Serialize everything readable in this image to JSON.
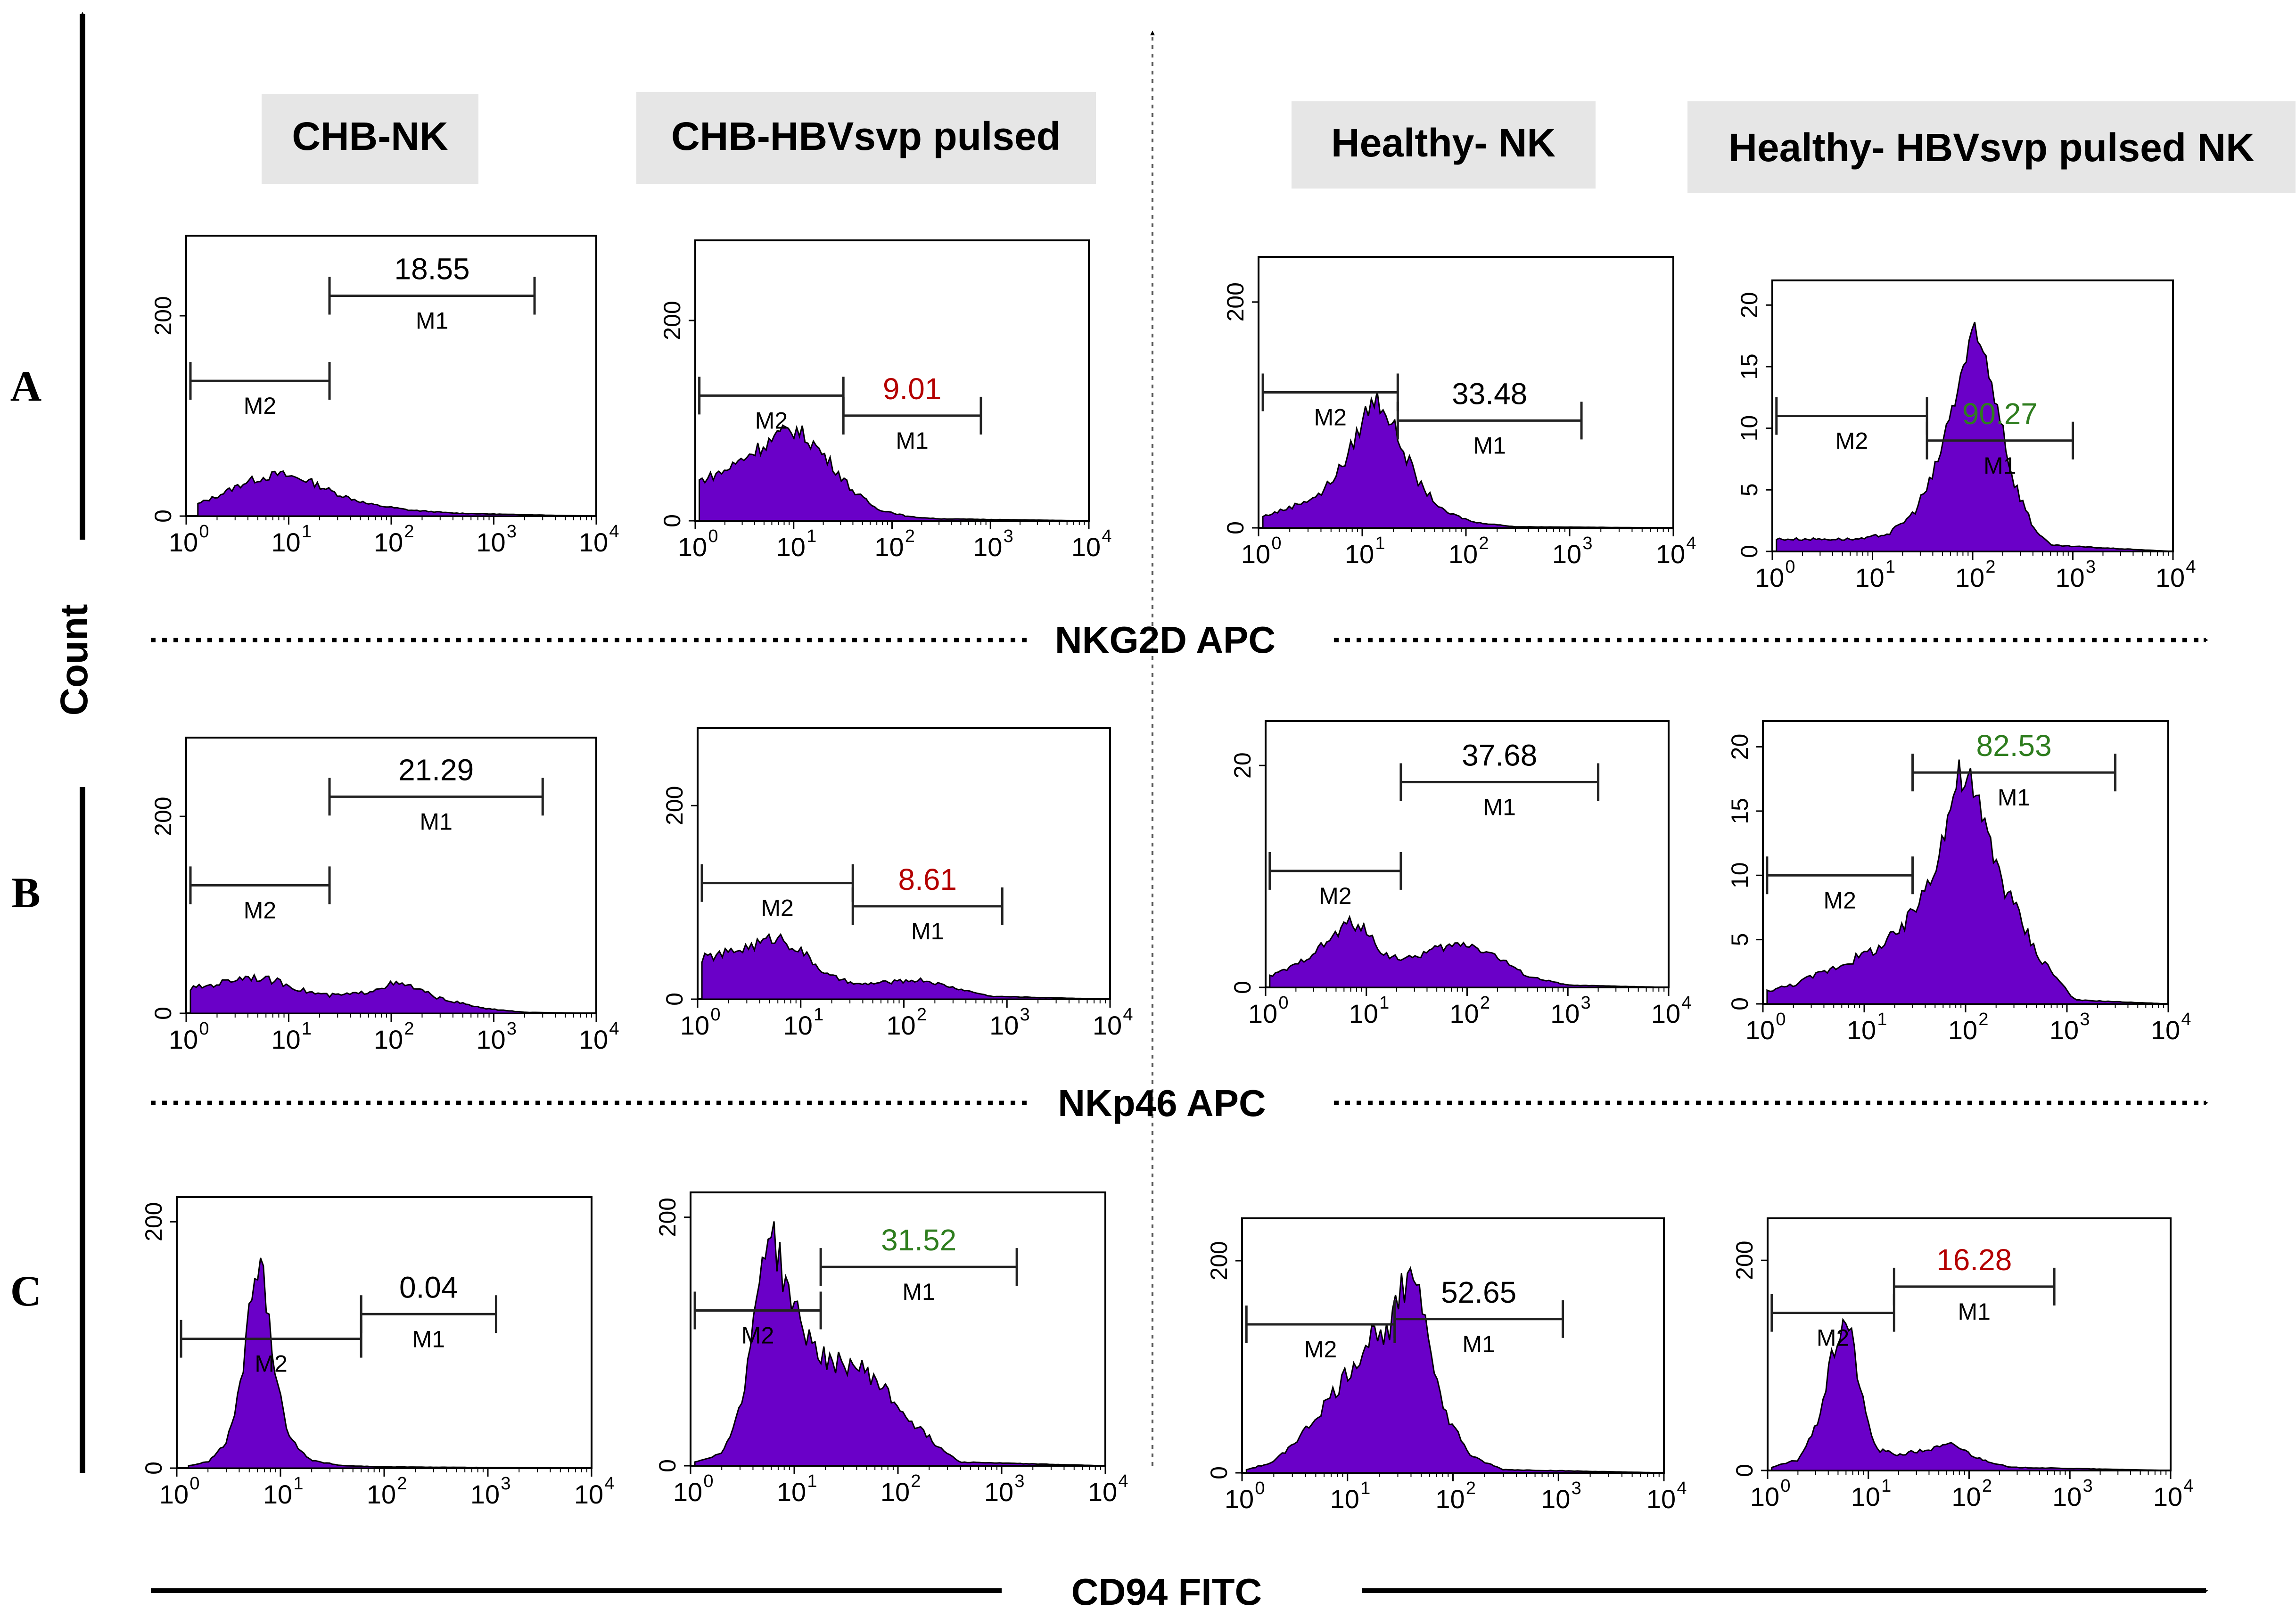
{
  "colors": {
    "fill": "#6a00c8",
    "header_bg": "#e6e6e6",
    "ink": "#000000",
    "red": "#b40000",
    "green": "#2e7d1e",
    "black": "#000000"
  },
  "columns": [
    "CHB-NK",
    "CHB-HBVsvp pulsed",
    "Healthy- NK",
    "Healthy- HBVsvp pulsed NK"
  ],
  "rows": [
    {
      "letter": "A",
      "marker": "NKG2D APC"
    },
    {
      "letter": "B",
      "marker": "NKp46 APC"
    },
    {
      "letter": "C",
      "marker": "CD94 FITC"
    }
  ],
  "y_axis_label": "Count",
  "chart_data": [
    {
      "type": "area",
      "row": "A",
      "column": "CHB-NK",
      "xscale": "log",
      "xlim": [
        1,
        10000
      ],
      "ylim": [
        0,
        280
      ],
      "yticks": [
        {
          "value": 0,
          "label": "0"
        },
        {
          "value": 200,
          "label": "200"
        }
      ],
      "x": [
        1.3,
        2,
        4,
        8,
        15,
        30,
        60,
        150,
        400,
        1000,
        3000,
        10000
      ],
      "counts": [
        12,
        20,
        35,
        42,
        36,
        22,
        12,
        6,
        3,
        2,
        1,
        0
      ],
      "gates": [
        {
          "name": "M2",
          "from": 1.1,
          "to": 25,
          "level": 135
        },
        {
          "name": "M1",
          "from": 25,
          "to": 2500,
          "level": 220,
          "percent": "18.55",
          "percent_color": "black"
        }
      ]
    },
    {
      "type": "area",
      "row": "A",
      "column": "CHB-HBVsvp pulsed",
      "xscale": "log",
      "xlim": [
        1,
        10000
      ],
      "ylim": [
        0,
        280
      ],
      "yticks": [
        {
          "value": 0,
          "label": "0"
        },
        {
          "value": 200,
          "label": "200"
        }
      ],
      "x": [
        1.1,
        2,
        4,
        7,
        10,
        15,
        25,
        40,
        70,
        150,
        300,
        10000
      ],
      "counts": [
        40,
        50,
        70,
        85,
        92,
        80,
        55,
        30,
        12,
        4,
        2,
        0
      ],
      "gates": [
        {
          "name": "M2",
          "from": 1.1,
          "to": 32,
          "level": 125
        },
        {
          "name": "M1",
          "from": 32,
          "to": 800,
          "level": 105,
          "percent": "9.01",
          "percent_color": "red"
        }
      ]
    },
    {
      "type": "area",
      "row": "A",
      "column": "Healthy- NK",
      "xscale": "log",
      "xlim": [
        1,
        10000
      ],
      "ylim": [
        0,
        240
      ],
      "yticks": [
        {
          "value": 0,
          "label": "0"
        },
        {
          "value": 200,
          "label": "200"
        }
      ],
      "x": [
        1.1,
        2,
        4,
        7,
        10,
        13,
        16,
        22,
        35,
        60,
        120,
        300,
        10000
      ],
      "counts": [
        10,
        18,
        30,
        60,
        95,
        115,
        110,
        80,
        40,
        15,
        5,
        1,
        0
      ],
      "gates": [
        {
          "name": "M2",
          "from": 1.1,
          "to": 22,
          "level": 120
        },
        {
          "name": "M1",
          "from": 22,
          "to": 1300,
          "level": 95,
          "percent": "33.48",
          "percent_color": "black"
        }
      ]
    },
    {
      "type": "area",
      "row": "A",
      "column": "Healthy- HBVsvp pulsed NK",
      "xscale": "log",
      "xlim": [
        1,
        10000
      ],
      "ylim": [
        0,
        22
      ],
      "yticks": [
        {
          "value": 0,
          "label": "0"
        },
        {
          "value": 5,
          "label": "5"
        },
        {
          "value": 10,
          "label": "10"
        },
        {
          "value": 15,
          "label": "15"
        },
        {
          "value": 20,
          "label": "20"
        }
      ],
      "x": [
        1.1,
        2,
        4,
        8,
        15,
        25,
        40,
        60,
        80,
        100,
        130,
        180,
        250,
        400,
        600,
        10000
      ],
      "counts": [
        1,
        1,
        1,
        1,
        1.5,
        3,
        6,
        11,
        15,
        17,
        16,
        12,
        6,
        2,
        0.5,
        0
      ],
      "gates": [
        {
          "name": "M2",
          "from": 1.1,
          "to": 35,
          "level": 11
        },
        {
          "name": "M1",
          "from": 35,
          "to": 1000,
          "level": 9,
          "percent": "90.27",
          "percent_color": "green"
        }
      ]
    },
    {
      "type": "area",
      "row": "B",
      "column": "CHB-NK",
      "xscale": "log",
      "xlim": [
        1,
        10000
      ],
      "ylim": [
        0,
        280
      ],
      "yticks": [
        {
          "value": 0,
          "label": "0"
        },
        {
          "value": 200,
          "label": "200"
        }
      ],
      "x": [
        1.1,
        2,
        4,
        8,
        15,
        25,
        50,
        100,
        150,
        300,
        800,
        2000,
        10000
      ],
      "counts": [
        25,
        30,
        38,
        32,
        22,
        18,
        20,
        30,
        28,
        15,
        5,
        1,
        0
      ],
      "gates": [
        {
          "name": "M2",
          "from": 1.1,
          "to": 25,
          "level": 130
        },
        {
          "name": "M1",
          "from": 25,
          "to": 3000,
          "level": 220,
          "percent": "21.29",
          "percent_color": "black"
        }
      ]
    },
    {
      "type": "area",
      "row": "B",
      "column": "CHB-HBVsvp pulsed",
      "xscale": "log",
      "xlim": [
        1,
        10000
      ],
      "ylim": [
        0,
        280
      ],
      "yticks": [
        {
          "value": 0,
          "label": "0"
        },
        {
          "value": 200,
          "label": "200"
        }
      ],
      "x": [
        1.1,
        2,
        4,
        6,
        10,
        18,
        35,
        80,
        150,
        300,
        700,
        10000
      ],
      "counts": [
        42,
        48,
        58,
        65,
        50,
        25,
        15,
        18,
        20,
        12,
        3,
        0
      ],
      "gates": [
        {
          "name": "M2",
          "from": 1.1,
          "to": 32,
          "level": 120
        },
        {
          "name": "M1",
          "from": 32,
          "to": 900,
          "level": 96,
          "percent": "8.61",
          "percent_color": "red"
        }
      ]
    },
    {
      "type": "area",
      "row": "B",
      "column": "Healthy- NK",
      "xscale": "log",
      "xlim": [
        1,
        10000
      ],
      "ylim": [
        0,
        24
      ],
      "yticks": [
        {
          "value": 0,
          "label": "0"
        },
        {
          "value": 20,
          "label": "20"
        }
      ],
      "x": [
        1.1,
        2,
        4,
        7,
        10,
        15,
        25,
        50,
        100,
        180,
        400,
        1000,
        10000
      ],
      "counts": [
        1,
        2,
        4,
        6,
        5,
        3,
        2.5,
        3.5,
        4,
        3,
        1,
        0.2,
        0
      ],
      "gates": [
        {
          "name": "M2",
          "from": 1.1,
          "to": 22,
          "level": 10.5
        },
        {
          "name": "M1",
          "from": 22,
          "to": 2000,
          "level": 18.5,
          "percent": "37.68",
          "percent_color": "black"
        }
      ]
    },
    {
      "type": "area",
      "row": "B",
      "column": "Healthy- HBVsvp pulsed NK",
      "xscale": "log",
      "xlim": [
        1,
        10000
      ],
      "ylim": [
        0,
        22
      ],
      "yticks": [
        {
          "value": 0,
          "label": "0"
        },
        {
          "value": 5,
          "label": "5"
        },
        {
          "value": 10,
          "label": "10"
        },
        {
          "value": 15,
          "label": "15"
        },
        {
          "value": 20,
          "label": "20"
        }
      ],
      "x": [
        1.1,
        2,
        4,
        8,
        15,
        25,
        40,
        60,
        80,
        100,
        150,
        250,
        500,
        900,
        1200,
        10000
      ],
      "counts": [
        1,
        1.5,
        2.5,
        3.5,
        4.5,
        6,
        9,
        13,
        17,
        18,
        14,
        9,
        4,
        1.5,
        0.3,
        0
      ],
      "gates": [
        {
          "name": "M2",
          "from": 1.1,
          "to": 30,
          "level": 10
        },
        {
          "name": "M1",
          "from": 30,
          "to": 3000,
          "level": 18,
          "percent": "82.53",
          "percent_color": "green"
        }
      ]
    },
    {
      "type": "area",
      "row": "C",
      "column": "CHB-NK",
      "xscale": "log",
      "xlim": [
        1,
        10000
      ],
      "ylim": [
        0,
        220
      ],
      "yticks": [
        {
          "value": 0,
          "label": "0"
        },
        {
          "value": 200,
          "label": "200"
        }
      ],
      "x": [
        1.3,
        2,
        3,
        4,
        5,
        6,
        7,
        9,
        12,
        20,
        40,
        100,
        10000
      ],
      "counts": [
        2,
        5,
        20,
        60,
        125,
        165,
        150,
        80,
        25,
        6,
        2,
        1,
        0
      ],
      "gates": [
        {
          "name": "M2",
          "from": 1.1,
          "to": 60,
          "level": 105
        },
        {
          "name": "M1",
          "from": 60,
          "to": 1200,
          "level": 125,
          "percent": "0.04",
          "percent_color": "black"
        }
      ]
    },
    {
      "type": "area",
      "row": "C",
      "column": "CHB-HBVsvp pulsed",
      "xscale": "log",
      "xlim": [
        1,
        10000
      ],
      "ylim": [
        0,
        220
      ],
      "yticks": [
        {
          "value": 0,
          "label": "0"
        },
        {
          "value": 200,
          "label": "200"
        }
      ],
      "x": [
        1.1,
        2,
        3,
        4,
        5,
        6,
        8,
        12,
        20,
        40,
        60,
        120,
        250,
        400,
        10000
      ],
      "counts": [
        3,
        10,
        45,
        110,
        175,
        190,
        150,
        110,
        85,
        80,
        70,
        40,
        15,
        3,
        0
      ],
      "gates": [
        {
          "name": "M2",
          "from": 1.1,
          "to": 18,
          "level": 125
        },
        {
          "name": "M1",
          "from": 18,
          "to": 1400,
          "level": 160,
          "percent": "31.52",
          "percent_color": "green"
        }
      ]
    },
    {
      "type": "area",
      "row": "C",
      "column": "Healthy- NK",
      "xscale": "log",
      "xlim": [
        1,
        10000
      ],
      "ylim": [
        0,
        240
      ],
      "yticks": [
        {
          "value": 0,
          "label": "0"
        },
        {
          "value": 200,
          "label": "200"
        }
      ],
      "x": [
        1.1,
        2,
        4,
        8,
        15,
        20,
        25,
        30,
        40,
        55,
        80,
        150,
        300,
        10000
      ],
      "counts": [
        3,
        10,
        40,
        80,
        120,
        140,
        128,
        160,
        200,
        150,
        60,
        15,
        3,
        0
      ],
      "gates": [
        {
          "name": "M2",
          "from": 1.1,
          "to": 28,
          "level": 140
        },
        {
          "name": "M1",
          "from": 28,
          "to": 1100,
          "level": 145,
          "percent": "52.65",
          "percent_color": "black"
        }
      ]
    },
    {
      "type": "area",
      "row": "C",
      "column": "Healthy- HBVsvp pulsed NK",
      "xscale": "log",
      "xlim": [
        1,
        10000
      ],
      "ylim": [
        0,
        240
      ],
      "yticks": [
        {
          "value": 0,
          "label": "0"
        },
        {
          "value": 200,
          "label": "200"
        }
      ],
      "x": [
        1.1,
        2,
        3,
        4,
        5,
        6,
        7,
        9,
        12,
        20,
        40,
        70,
        120,
        250,
        10000
      ],
      "counts": [
        3,
        10,
        40,
        90,
        130,
        145,
        120,
        60,
        20,
        15,
        20,
        25,
        12,
        3,
        0
      ],
      "gates": [
        {
          "name": "M2",
          "from": 1.1,
          "to": 18,
          "level": 150
        },
        {
          "name": "M1",
          "from": 18,
          "to": 700,
          "level": 175,
          "percent": "16.28",
          "percent_color": "red"
        }
      ]
    }
  ]
}
